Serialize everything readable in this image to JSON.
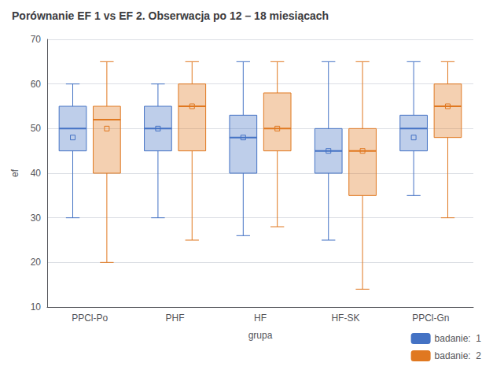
{
  "chart_data": {
    "type": "box",
    "title": "Porównanie EF 1 vs EF 2. Obserwacja po 12 – 18 miesiącach",
    "x_label": "grupa",
    "y_label": "ef",
    "categories": [
      "PPCl-Po",
      "PHF",
      "HF",
      "HF-SK",
      "PPCl-Gn"
    ],
    "series": [
      {
        "name": "badanie:  1",
        "color": "#4472c4",
        "values": [
          {
            "whislo": 30,
            "q1": 45,
            "median": 50,
            "q3": 55,
            "whishi": 60,
            "mean": 48
          },
          {
            "whislo": 30,
            "q1": 45,
            "median": 50,
            "q3": 55,
            "whishi": 60,
            "mean": 50
          },
          {
            "whislo": 26,
            "q1": 40,
            "median": 48,
            "q3": 53,
            "whishi": 65,
            "mean": 48
          },
          {
            "whislo": 25,
            "q1": 40,
            "median": 45,
            "q3": 50,
            "whishi": 65,
            "mean": 45
          },
          {
            "whislo": 35,
            "q1": 45,
            "median": 50,
            "q3": 53,
            "whishi": 65,
            "mean": 48
          }
        ]
      },
      {
        "name": "badanie:  2",
        "color": "#e07820",
        "values": [
          {
            "whislo": 20,
            "q1": 40,
            "median": 52,
            "q3": 55,
            "whishi": 65,
            "mean": 50
          },
          {
            "whislo": 25,
            "q1": 45,
            "median": 55,
            "q3": 60,
            "whishi": 65,
            "mean": 55
          },
          {
            "whislo": 28,
            "q1": 45,
            "median": 50,
            "q3": 58,
            "whishi": 65,
            "mean": 50
          },
          {
            "whislo": 14,
            "q1": 35,
            "median": 45,
            "q3": 50,
            "whishi": 65,
            "mean": 45
          },
          {
            "whislo": 30,
            "q1": 48,
            "median": 55,
            "q3": 60,
            "whishi": 65,
            "mean": 55
          }
        ]
      }
    ],
    "ylim": [
      10,
      70
    ],
    "yticks": [
      10,
      20,
      30,
      40,
      50,
      60,
      70
    ],
    "grid": true,
    "legend": "lower right"
  }
}
